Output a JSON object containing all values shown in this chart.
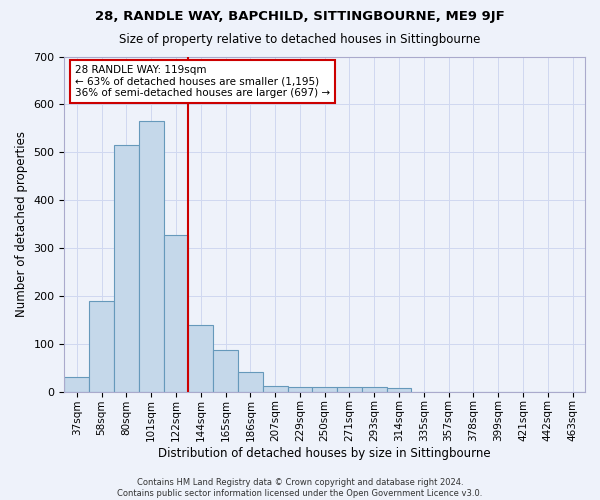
{
  "title": "28, RANDLE WAY, BAPCHILD, SITTINGBOURNE, ME9 9JF",
  "subtitle": "Size of property relative to detached houses in Sittingbourne",
  "xlabel": "Distribution of detached houses by size in Sittingbourne",
  "ylabel": "Number of detached properties",
  "categories": [
    "37sqm",
    "58sqm",
    "80sqm",
    "101sqm",
    "122sqm",
    "144sqm",
    "165sqm",
    "186sqm",
    "207sqm",
    "229sqm",
    "250sqm",
    "271sqm",
    "293sqm",
    "314sqm",
    "335sqm",
    "357sqm",
    "378sqm",
    "399sqm",
    "421sqm",
    "442sqm",
    "463sqm"
  ],
  "values": [
    30,
    190,
    515,
    565,
    327,
    140,
    87,
    42,
    12,
    9,
    9,
    9,
    10,
    7,
    0,
    0,
    0,
    0,
    0,
    0,
    0
  ],
  "bar_color": "#c5d8ea",
  "bar_edge_color": "#6699bb",
  "vline_x": 4.5,
  "vline_color": "#cc0000",
  "annotation_text": "28 RANDLE WAY: 119sqm\n← 63% of detached houses are smaller (1,195)\n36% of semi-detached houses are larger (697) →",
  "annotation_box_color": "#ffffff",
  "annotation_box_edge": "#cc0000",
  "ylim": [
    0,
    700
  ],
  "background_color": "#eef2fa",
  "grid_color": "#d0d8f0",
  "footer": "Contains HM Land Registry data © Crown copyright and database right 2024.\nContains public sector information licensed under the Open Government Licence v3.0."
}
